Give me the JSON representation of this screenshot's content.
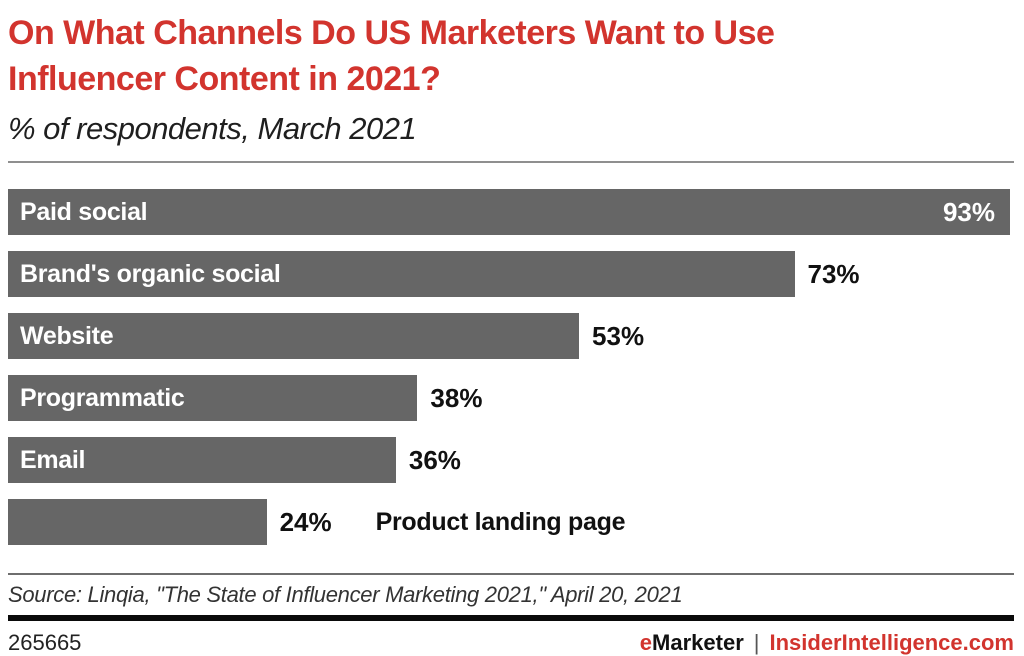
{
  "header": {
    "title": "On What Channels Do US Marketers Want to Use\nInfluencer Content in 2021?",
    "subtitle": "% of respondents, March 2021"
  },
  "chart_data": {
    "type": "bar",
    "orientation": "horizontal",
    "categories": [
      "Paid social",
      "Brand's organic social",
      "Website",
      "Programmatic",
      "Email",
      "Product landing page"
    ],
    "values": [
      93,
      73,
      53,
      38,
      36,
      24
    ],
    "value_suffix": "%",
    "title": "On What Channels Do US Marketers Want to Use Influencer Content in 2021?",
    "subtitle": "% of respondents, March 2021",
    "xlabel": "",
    "ylabel": "",
    "xlim": [
      0,
      93
    ],
    "grid": false,
    "legend": false,
    "bar_color": "#666666",
    "value_inside_categories": [
      "Paid social"
    ],
    "label_outside_categories": [
      "Product landing page"
    ]
  },
  "footer": {
    "source": "Source: Linqia, \"The State of Influencer Marketing 2021,\" April 20, 2021",
    "chart_id": "265665",
    "emarketer_prefix": "e",
    "emarketer_rest": "Marketer",
    "separator": "|",
    "insider_site": "InsiderIntelligence.com"
  },
  "colors": {
    "accent_red": "#d2342e",
    "bar_gray": "#666666",
    "rule_gray": "#8f8f8f",
    "rule_black": "#0a0a0a"
  }
}
